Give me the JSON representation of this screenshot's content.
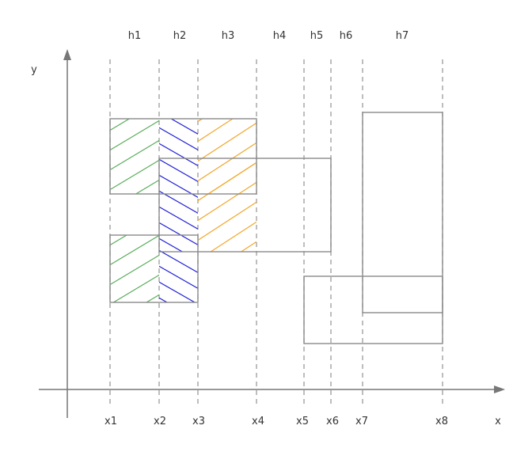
{
  "axes": {
    "x_label": "x",
    "y_label": "y"
  },
  "x_ticks": [
    "x1",
    "x2",
    "x3",
    "x4",
    "x5",
    "x6",
    "x7",
    "x8"
  ],
  "strips": [
    "h1",
    "h2",
    "h3",
    "h4",
    "h5",
    "h6",
    "h7"
  ],
  "colors": {
    "hatch_h1": "#5aac5a",
    "hatch_h2": "#1f1fd6",
    "hatch_h3": "#f2a930",
    "rect_outline": "#8a8a8a",
    "axis": "#777777",
    "guide": "#9a9a9a"
  }
}
